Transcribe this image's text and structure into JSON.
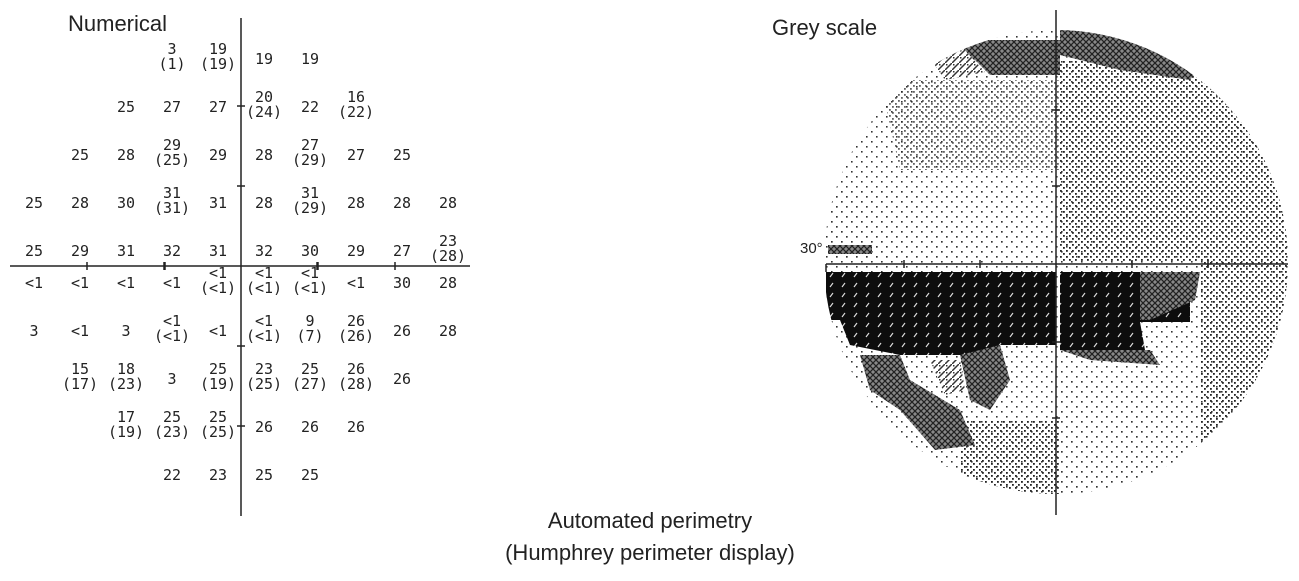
{
  "numerical": {
    "title": "Numerical",
    "points": [
      {
        "col": -1,
        "row": 4,
        "a": "3",
        "b": "(1)"
      },
      {
        "col": 0,
        "row": 4,
        "a": "19",
        "b": "(19)"
      },
      {
        "col": 1,
        "row": 4,
        "a": "19",
        "b": ""
      },
      {
        "col": 2,
        "row": 4,
        "a": "19",
        "b": ""
      },
      {
        "col": -2,
        "row": 3,
        "a": "25",
        "b": ""
      },
      {
        "col": -1,
        "row": 3,
        "a": "27",
        "b": ""
      },
      {
        "col": 0,
        "row": 3,
        "a": "27",
        "b": ""
      },
      {
        "col": 1,
        "row": 3,
        "a": "20",
        "b": "(24)"
      },
      {
        "col": 2,
        "row": 3,
        "a": "22",
        "b": ""
      },
      {
        "col": 3,
        "row": 3,
        "a": "16",
        "b": "(22)"
      },
      {
        "col": -3,
        "row": 2,
        "a": "25",
        "b": ""
      },
      {
        "col": -2,
        "row": 2,
        "a": "28",
        "b": ""
      },
      {
        "col": -1,
        "row": 2,
        "a": "29",
        "b": "(25)"
      },
      {
        "col": 0,
        "row": 2,
        "a": "29",
        "b": ""
      },
      {
        "col": 1,
        "row": 2,
        "a": "28",
        "b": ""
      },
      {
        "col": 2,
        "row": 2,
        "a": "27",
        "b": "(29)"
      },
      {
        "col": 3,
        "row": 2,
        "a": "27",
        "b": ""
      },
      {
        "col": 4,
        "row": 2,
        "a": "25",
        "b": ""
      },
      {
        "col": -4,
        "row": 1,
        "a": "25",
        "b": ""
      },
      {
        "col": -3,
        "row": 1,
        "a": "28",
        "b": ""
      },
      {
        "col": -2,
        "row": 1,
        "a": "30",
        "b": ""
      },
      {
        "col": -1,
        "row": 1,
        "a": "31",
        "b": "(31)"
      },
      {
        "col": 0,
        "row": 1,
        "a": "31",
        "b": ""
      },
      {
        "col": 1,
        "row": 1,
        "a": "28",
        "b": ""
      },
      {
        "col": 2,
        "row": 1,
        "a": "31",
        "b": "(29)"
      },
      {
        "col": 3,
        "row": 1,
        "a": "28",
        "b": ""
      },
      {
        "col": 4,
        "row": 1,
        "a": "28",
        "b": ""
      },
      {
        "col": 5,
        "row": 1,
        "a": "28",
        "b": ""
      },
      {
        "col": -4,
        "row": 0,
        "a": "25",
        "b": ""
      },
      {
        "col": -3,
        "row": 0,
        "a": "29",
        "b": ""
      },
      {
        "col": -2,
        "row": 0,
        "a": "31",
        "b": ""
      },
      {
        "col": -1,
        "row": 0,
        "a": "32",
        "b": ""
      },
      {
        "col": 0,
        "row": 0,
        "a": "31",
        "b": ""
      },
      {
        "col": 1,
        "row": 0,
        "a": "32",
        "b": ""
      },
      {
        "col": 2,
        "row": 0,
        "a": "30",
        "b": ""
      },
      {
        "col": 3,
        "row": 0,
        "a": "29",
        "b": ""
      },
      {
        "col": 4,
        "row": 0,
        "a": "27",
        "b": ""
      },
      {
        "col": 5,
        "row": 0,
        "a": "23",
        "b": "(28)"
      },
      {
        "col": -4,
        "row": -1,
        "a": "<1",
        "b": ""
      },
      {
        "col": -3,
        "row": -1,
        "a": "<1",
        "b": ""
      },
      {
        "col": -2,
        "row": -1,
        "a": "<1",
        "b": ""
      },
      {
        "col": -1,
        "row": -1,
        "a": "<1",
        "b": ""
      },
      {
        "col": 0,
        "row": -1,
        "a": "<1",
        "b": "(<1)"
      },
      {
        "col": 1,
        "row": -1,
        "a": "<1",
        "b": "(<1)"
      },
      {
        "col": 2,
        "row": -1,
        "a": "<1",
        "b": "(<1)"
      },
      {
        "col": 3,
        "row": -1,
        "a": "<1",
        "b": ""
      },
      {
        "col": 4,
        "row": -1,
        "a": "30",
        "b": ""
      },
      {
        "col": 5,
        "row": -1,
        "a": "28",
        "b": ""
      },
      {
        "col": -4,
        "row": -2,
        "a": "3",
        "b": ""
      },
      {
        "col": -3,
        "row": -2,
        "a": "<1",
        "b": ""
      },
      {
        "col": -2,
        "row": -2,
        "a": "3",
        "b": ""
      },
      {
        "col": -1,
        "row": -2,
        "a": "<1",
        "b": "(<1)"
      },
      {
        "col": 0,
        "row": -2,
        "a": "<1",
        "b": ""
      },
      {
        "col": 1,
        "row": -2,
        "a": "<1",
        "b": "(<1)"
      },
      {
        "col": 2,
        "row": -2,
        "a": "9",
        "b": "(7)"
      },
      {
        "col": 3,
        "row": -2,
        "a": "26",
        "b": "(26)"
      },
      {
        "col": 4,
        "row": -2,
        "a": "26",
        "b": ""
      },
      {
        "col": 5,
        "row": -2,
        "a": "28",
        "b": ""
      },
      {
        "col": -3,
        "row": -3,
        "a": "15",
        "b": "(17)"
      },
      {
        "col": -2,
        "row": -3,
        "a": "18",
        "b": "(23)"
      },
      {
        "col": -1,
        "row": -3,
        "a": "3",
        "b": ""
      },
      {
        "col": 0,
        "row": -3,
        "a": "25",
        "b": "(19)"
      },
      {
        "col": 1,
        "row": -3,
        "a": "23",
        "b": "(25)"
      },
      {
        "col": 2,
        "row": -3,
        "a": "25",
        "b": "(27)"
      },
      {
        "col": 3,
        "row": -3,
        "a": "26",
        "b": "(28)"
      },
      {
        "col": 4,
        "row": -3,
        "a": "26",
        "b": ""
      },
      {
        "col": -2,
        "row": -4,
        "a": "17",
        "b": "(19)"
      },
      {
        "col": -1,
        "row": -4,
        "a": "25",
        "b": "(23)"
      },
      {
        "col": 0,
        "row": -4,
        "a": "25",
        "b": "(25)"
      },
      {
        "col": 1,
        "row": -4,
        "a": "26",
        "b": ""
      },
      {
        "col": 2,
        "row": -4,
        "a": "26",
        "b": ""
      },
      {
        "col": 3,
        "row": -4,
        "a": "26",
        "b": ""
      },
      {
        "col": -1,
        "row": -5,
        "a": "22",
        "b": ""
      },
      {
        "col": 0,
        "row": -5,
        "a": "23",
        "b": ""
      },
      {
        "col": 1,
        "row": -5,
        "a": "25",
        "b": ""
      },
      {
        "col": 2,
        "row": -5,
        "a": "25",
        "b": ""
      }
    ]
  },
  "greyscale": {
    "title": "Grey scale",
    "axis_label": "30°",
    "patterns": [
      "sparse-dots",
      "dense-dots",
      "diagonal-hatch",
      "cross-hatch",
      "black"
    ]
  },
  "caption": {
    "line1": "Automated perimetry",
    "line2": "(Humphrey perimeter display)"
  }
}
